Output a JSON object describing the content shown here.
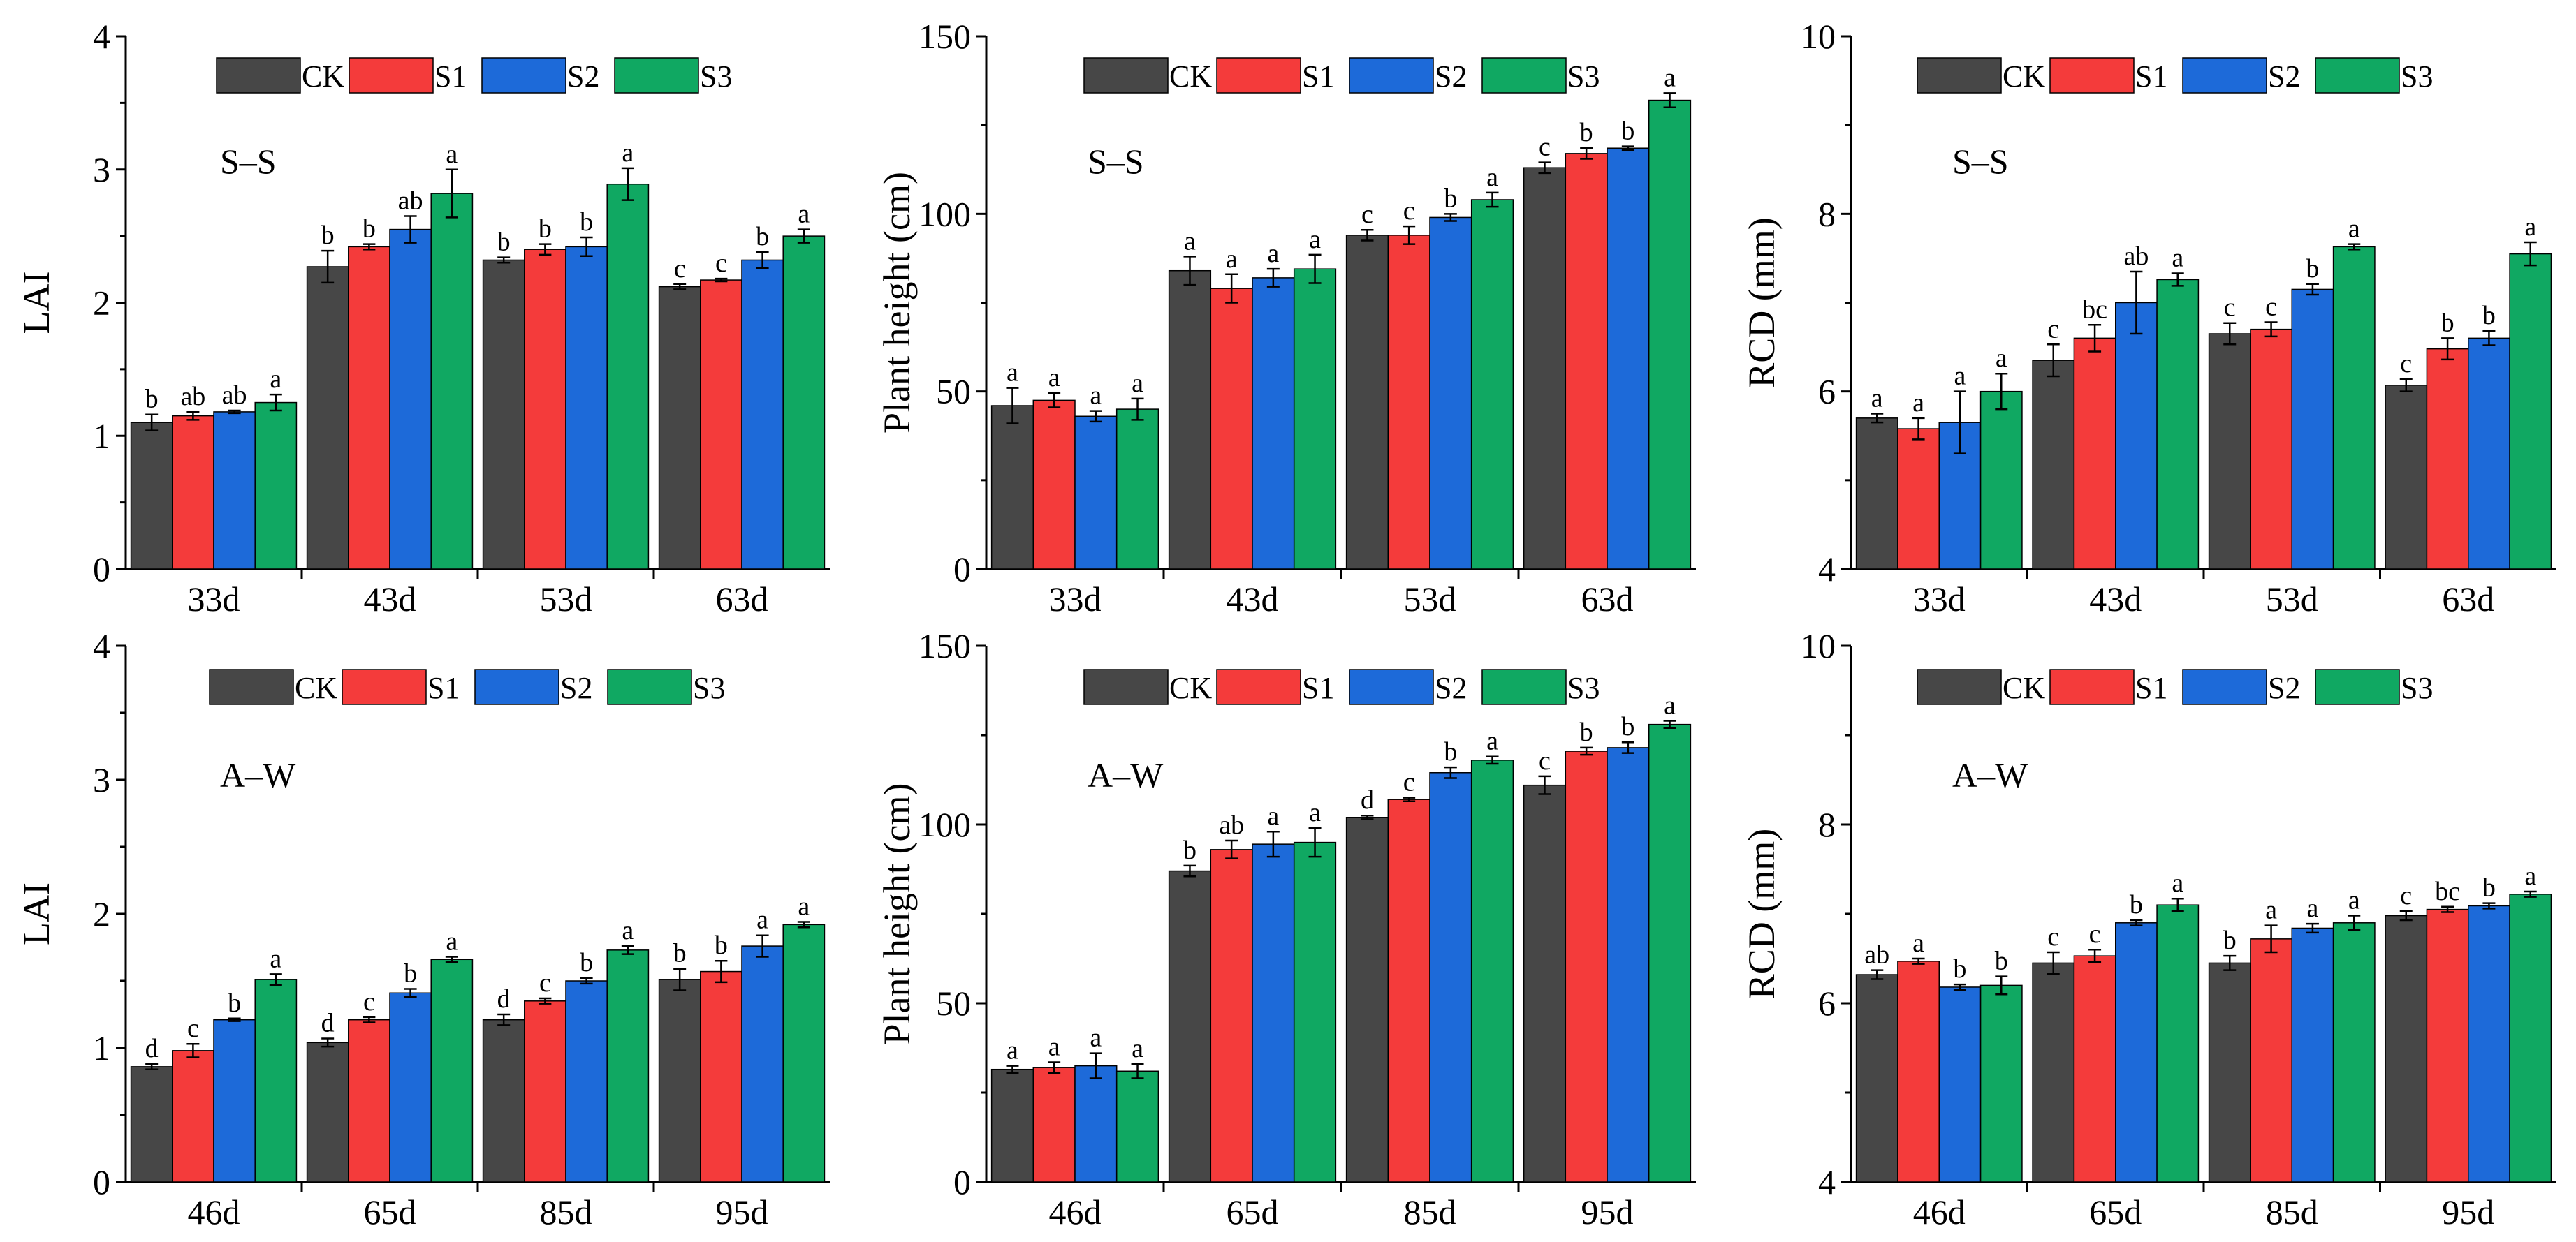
{
  "series_colors": {
    "CK": "#474747",
    "S1": "#f43b3b",
    "S2": "#1d6ad9",
    "S3": "#10a862"
  },
  "chart_data": [
    {
      "type": "bar",
      "title": "S–S",
      "xlabel": "",
      "ylabel": "LAI",
      "ylim": [
        0,
        4
      ],
      "yticks": [
        "0",
        "1",
        "2",
        "3",
        "4"
      ],
      "categories": [
        "33d",
        "43d",
        "53d",
        "63d"
      ],
      "series": [
        {
          "name": "CK",
          "values": [
            1.1,
            2.27,
            2.32,
            2.12
          ],
          "errors": [
            0.06,
            0.12,
            0.02,
            0.02
          ],
          "letters": [
            "b",
            "b",
            "b",
            "c"
          ]
        },
        {
          "name": "S1",
          "values": [
            1.15,
            2.42,
            2.4,
            2.17
          ],
          "errors": [
            0.03,
            0.02,
            0.04,
            0.01
          ],
          "letters": [
            "ab",
            "b",
            "b",
            "c"
          ]
        },
        {
          "name": "S2",
          "values": [
            1.18,
            2.55,
            2.42,
            2.32
          ],
          "errors": [
            0.01,
            0.1,
            0.07,
            0.06
          ],
          "letters": [
            "ab",
            "ab",
            "b",
            "b"
          ]
        },
        {
          "name": "S3",
          "values": [
            1.25,
            2.82,
            2.89,
            2.5
          ],
          "errors": [
            0.06,
            0.18,
            0.12,
            0.05
          ],
          "letters": [
            "a",
            "a",
            "a",
            "a"
          ]
        }
      ]
    },
    {
      "type": "bar",
      "title": "S–S",
      "xlabel": "",
      "ylabel": "Plant height (cm)",
      "ylim": [
        0,
        150
      ],
      "yticks": [
        "0",
        "50",
        "100",
        "150"
      ],
      "categories": [
        "33d",
        "43d",
        "53d",
        "63d"
      ],
      "series": [
        {
          "name": "CK",
          "values": [
            46,
            84,
            94,
            113
          ],
          "errors": [
            5,
            4,
            1.5,
            1.5
          ],
          "letters": [
            "a",
            "a",
            "c",
            "c"
          ]
        },
        {
          "name": "S1",
          "values": [
            47.5,
            79,
            94,
            117
          ],
          "errors": [
            2,
            4,
            2.5,
            1.5
          ],
          "letters": [
            "a",
            "a",
            "c",
            "b"
          ]
        },
        {
          "name": "S2",
          "values": [
            43,
            82,
            99,
            118.5
          ],
          "errors": [
            1.5,
            2.5,
            1,
            0.5
          ],
          "letters": [
            "a",
            "a",
            "b",
            "b"
          ]
        },
        {
          "name": "S3",
          "values": [
            45,
            84.5,
            104,
            132
          ],
          "errors": [
            3,
            4,
            2,
            2
          ],
          "letters": [
            "a",
            "a",
            "a",
            "a"
          ]
        }
      ]
    },
    {
      "type": "bar",
      "title": "S–S",
      "xlabel": "",
      "ylabel": "RCD (mm)",
      "ylim": [
        4,
        10
      ],
      "yticks": [
        "4",
        "6",
        "8",
        "10"
      ],
      "categories": [
        "33d",
        "43d",
        "53d",
        "63d"
      ],
      "series": [
        {
          "name": "CK",
          "values": [
            5.7,
            6.35,
            6.65,
            6.07
          ],
          "errors": [
            0.05,
            0.18,
            0.12,
            0.07
          ],
          "letters": [
            "a",
            "c",
            "c",
            "c"
          ]
        },
        {
          "name": "S1",
          "values": [
            5.58,
            6.6,
            6.7,
            6.48
          ],
          "errors": [
            0.12,
            0.15,
            0.08,
            0.12
          ],
          "letters": [
            "a",
            "bc",
            "c",
            "b"
          ]
        },
        {
          "name": "S2",
          "values": [
            5.65,
            7.0,
            7.15,
            6.6
          ],
          "errors": [
            0.35,
            0.35,
            0.06,
            0.08
          ],
          "letters": [
            "a",
            "ab",
            "b",
            "b"
          ]
        },
        {
          "name": "S3",
          "values": [
            6.0,
            7.26,
            7.63,
            7.55
          ],
          "errors": [
            0.2,
            0.07,
            0.03,
            0.13
          ],
          "letters": [
            "a",
            "a",
            "a",
            "a"
          ]
        }
      ]
    },
    {
      "type": "bar",
      "title": "A–W",
      "xlabel": "",
      "ylabel": "LAI",
      "ylim": [
        0,
        4
      ],
      "yticks": [
        "0",
        "1",
        "2",
        "3",
        "4"
      ],
      "categories": [
        "46d",
        "65d",
        "85d",
        "95d"
      ],
      "series": [
        {
          "name": "CK",
          "values": [
            0.86,
            1.04,
            1.21,
            1.51
          ],
          "errors": [
            0.02,
            0.03,
            0.04,
            0.08
          ],
          "letters": [
            "d",
            "d",
            "d",
            "b"
          ]
        },
        {
          "name": "S1",
          "values": [
            0.98,
            1.21,
            1.35,
            1.57
          ],
          "errors": [
            0.05,
            0.02,
            0.02,
            0.08
          ],
          "letters": [
            "c",
            "c",
            "c",
            "b"
          ]
        },
        {
          "name": "S2",
          "values": [
            1.21,
            1.41,
            1.5,
            1.76
          ],
          "errors": [
            0.01,
            0.03,
            0.02,
            0.08
          ],
          "letters": [
            "b",
            "b",
            "b",
            "a"
          ]
        },
        {
          "name": "S3",
          "values": [
            1.51,
            1.66,
            1.73,
            1.92
          ],
          "errors": [
            0.04,
            0.02,
            0.03,
            0.02
          ],
          "letters": [
            "a",
            "a",
            "a",
            "a"
          ]
        }
      ]
    },
    {
      "type": "bar",
      "title": "A–W",
      "xlabel": "",
      "ylabel": "Plant height (cm)",
      "ylim": [
        0,
        150
      ],
      "yticks": [
        "0",
        "50",
        "100",
        "150"
      ],
      "categories": [
        "46d",
        "65d",
        "85d",
        "95d"
      ],
      "series": [
        {
          "name": "CK",
          "values": [
            31.5,
            87,
            102,
            111
          ],
          "errors": [
            1,
            1.5,
            0.5,
            2.5
          ],
          "letters": [
            "a",
            "b",
            "d",
            "c"
          ]
        },
        {
          "name": "S1",
          "values": [
            32,
            93,
            107,
            120.5
          ],
          "errors": [
            1.5,
            2.5,
            0.5,
            1
          ],
          "letters": [
            "a",
            "ab",
            "c",
            "b"
          ]
        },
        {
          "name": "S2",
          "values": [
            32.5,
            94.5,
            114.5,
            121.5
          ],
          "errors": [
            3.5,
            3.5,
            1.5,
            1.5
          ],
          "letters": [
            "a",
            "a",
            "b",
            "b"
          ]
        },
        {
          "name": "S3",
          "values": [
            31,
            95,
            118,
            128
          ],
          "errors": [
            2,
            4,
            1,
            1
          ],
          "letters": [
            "a",
            "a",
            "a",
            "a"
          ]
        }
      ]
    },
    {
      "type": "bar",
      "title": "A–W",
      "xlabel": "",
      "ylabel": "RCD (mm)",
      "ylim": [
        4,
        10
      ],
      "yticks": [
        "4",
        "6",
        "8",
        "10"
      ],
      "categories": [
        "46d",
        "65d",
        "85d",
        "95d"
      ],
      "series": [
        {
          "name": "CK",
          "values": [
            6.32,
            6.45,
            6.45,
            6.98
          ],
          "errors": [
            0.05,
            0.12,
            0.08,
            0.05
          ],
          "letters": [
            "ab",
            "c",
            "b",
            "c"
          ]
        },
        {
          "name": "S1",
          "values": [
            6.47,
            6.53,
            6.72,
            7.05
          ],
          "errors": [
            0.03,
            0.07,
            0.15,
            0.03
          ],
          "letters": [
            "a",
            "c",
            "a",
            "bc"
          ]
        },
        {
          "name": "S2",
          "values": [
            6.18,
            6.9,
            6.84,
            7.09
          ],
          "errors": [
            0.03,
            0.03,
            0.05,
            0.03
          ],
          "letters": [
            "b",
            "b",
            "a",
            "b"
          ]
        },
        {
          "name": "S3",
          "values": [
            6.2,
            7.1,
            6.9,
            7.22
          ],
          "errors": [
            0.1,
            0.07,
            0.08,
            0.03
          ],
          "letters": [
            "b",
            "a",
            "a",
            "a"
          ]
        }
      ]
    }
  ]
}
